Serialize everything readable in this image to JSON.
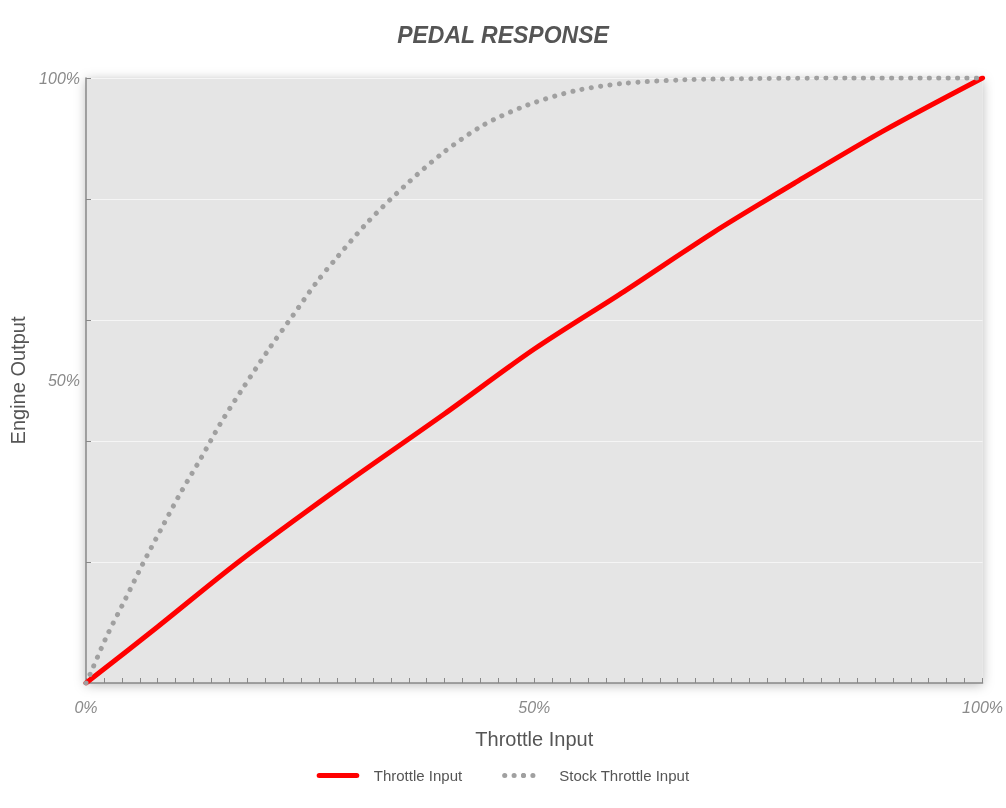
{
  "chart_data": {
    "type": "line",
    "title": "PEDAL RESPONSE",
    "xlabel": "Throttle Input",
    "ylabel": "Engine Output",
    "xlim": [
      0,
      100
    ],
    "ylim": [
      0,
      100
    ],
    "xticks": [
      {
        "value": 0,
        "label": "0%"
      },
      {
        "value": 2,
        "label": null
      },
      {
        "value": 4,
        "label": null
      },
      {
        "value": 6,
        "label": null
      },
      {
        "value": 8,
        "label": null
      },
      {
        "value": 10,
        "label": null
      },
      {
        "value": 12,
        "label": null
      },
      {
        "value": 14,
        "label": null
      },
      {
        "value": 16,
        "label": null
      },
      {
        "value": 18,
        "label": null
      },
      {
        "value": 20,
        "label": null
      },
      {
        "value": 22,
        "label": null
      },
      {
        "value": 24,
        "label": null
      },
      {
        "value": 26,
        "label": null
      },
      {
        "value": 28,
        "label": null
      },
      {
        "value": 30,
        "label": null
      },
      {
        "value": 32,
        "label": null
      },
      {
        "value": 34,
        "label": null
      },
      {
        "value": 36,
        "label": null
      },
      {
        "value": 38,
        "label": null
      },
      {
        "value": 40,
        "label": null
      },
      {
        "value": 42,
        "label": null
      },
      {
        "value": 44,
        "label": null
      },
      {
        "value": 46,
        "label": null
      },
      {
        "value": 48,
        "label": null
      },
      {
        "value": 50,
        "label": "50%"
      },
      {
        "value": 52,
        "label": null
      },
      {
        "value": 54,
        "label": null
      },
      {
        "value": 56,
        "label": null
      },
      {
        "value": 58,
        "label": null
      },
      {
        "value": 60,
        "label": null
      },
      {
        "value": 62,
        "label": null
      },
      {
        "value": 64,
        "label": null
      },
      {
        "value": 66,
        "label": null
      },
      {
        "value": 68,
        "label": null
      },
      {
        "value": 70,
        "label": null
      },
      {
        "value": 72,
        "label": null
      },
      {
        "value": 74,
        "label": null
      },
      {
        "value": 76,
        "label": null
      },
      {
        "value": 78,
        "label": null
      },
      {
        "value": 80,
        "label": null
      },
      {
        "value": 82,
        "label": null
      },
      {
        "value": 84,
        "label": null
      },
      {
        "value": 86,
        "label": null
      },
      {
        "value": 88,
        "label": null
      },
      {
        "value": 90,
        "label": null
      },
      {
        "value": 92,
        "label": null
      },
      {
        "value": 94,
        "label": null
      },
      {
        "value": 96,
        "label": null
      },
      {
        "value": 98,
        "label": null
      },
      {
        "value": 100,
        "label": "100%"
      }
    ],
    "yticks": [
      {
        "value": 20,
        "label": null
      },
      {
        "value": 40,
        "label": null
      },
      {
        "value": 50,
        "label": "50%"
      },
      {
        "value": 60,
        "label": null
      },
      {
        "value": 80,
        "label": null
      },
      {
        "value": 100,
        "label": "100%"
      }
    ],
    "grid": "y",
    "legend": "bottom",
    "marker": "none",
    "series": [
      {
        "name": "Throttle Input",
        "color": "#ff0000",
        "line_style": "solid",
        "x": [
          0,
          8,
          17,
          28,
          40,
          50,
          60,
          70,
          79,
          89,
          100
        ],
        "values": [
          0,
          9.3,
          20,
          32,
          44.5,
          55.2,
          64.7,
          74.5,
          82.6,
          91.3,
          100
        ]
      },
      {
        "name": "Stock Throttle Input",
        "color": "#a0a0a0",
        "line_style": "dotted",
        "x": [
          0,
          0.5,
          2.3,
          4.3,
          6.3,
          8.4,
          10.5,
          12.8,
          15,
          17.4,
          20.5,
          23.1,
          25.7,
          27.8,
          31.5,
          35.5,
          39.7,
          44.3,
          49.2,
          54.6,
          59.9,
          66.7,
          74.6,
          85,
          100
        ],
        "values": [
          0,
          1.6,
          7.7,
          13.6,
          19.6,
          25.5,
          31.3,
          37.1,
          42.9,
          48.5,
          55.4,
          60.8,
          66.2,
          70,
          76.3,
          82.1,
          87.5,
          92.2,
          95.5,
          97.9,
          99.1,
          99.7,
          99.9,
          100,
          100
        ]
      }
    ]
  }
}
